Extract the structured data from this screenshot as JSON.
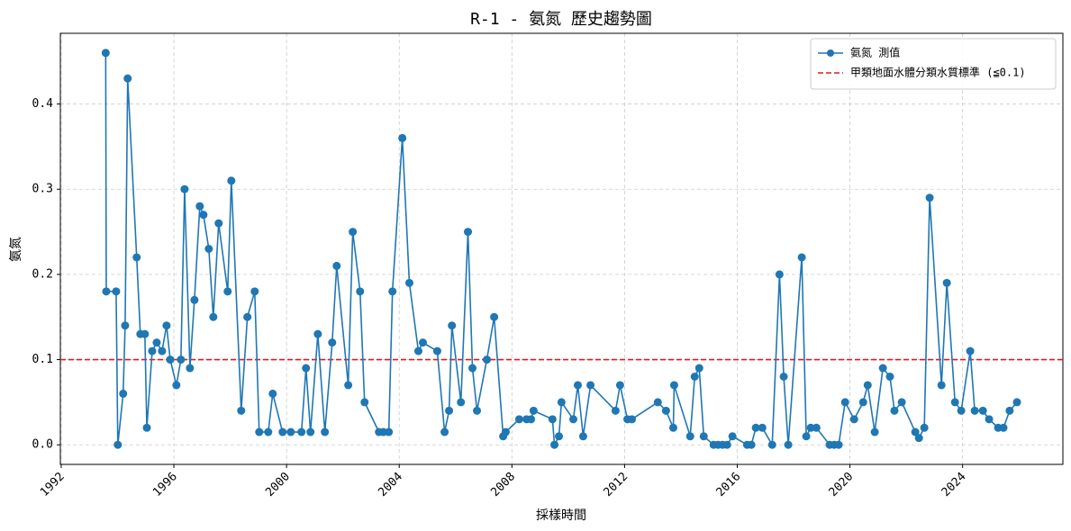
{
  "chart_data": {
    "type": "line",
    "title": "R-1 - 氨氮 歷史趨勢圖",
    "xlabel": "採樣時間",
    "ylabel": "氨氮",
    "x": [
      1993.58,
      1993.6,
      1993.95,
      1994.01,
      1994.2,
      1994.27,
      1994.36,
      1994.68,
      1994.81,
      1994.97,
      1995.04,
      1995.23,
      1995.39,
      1995.58,
      1995.74,
      1995.87,
      1996.09,
      1996.25,
      1996.38,
      1996.57,
      1996.73,
      1996.92,
      1997.05,
      1997.24,
      1997.4,
      1997.59,
      1997.91,
      1998.04,
      1998.39,
      1998.61,
      1998.87,
      1999.03,
      1999.35,
      1999.51,
      1999.86,
      2000.15,
      2000.53,
      2000.69,
      2000.85,
      2001.11,
      2001.36,
      2001.62,
      2001.78,
      2002.19,
      2002.35,
      2002.61,
      2002.77,
      2003.28,
      2003.44,
      2003.63,
      2003.76,
      2004.11,
      2004.36,
      2004.68,
      2004.84,
      2005.35,
      2005.61,
      2005.77,
      2005.87,
      2006.19,
      2006.44,
      2006.6,
      2006.76,
      2007.11,
      2007.37,
      2007.69,
      2007.78,
      2008.26,
      2008.52,
      2008.68,
      2008.77,
      2009.44,
      2009.51,
      2009.67,
      2009.76,
      2010.18,
      2010.34,
      2010.53,
      2010.79,
      2011.68,
      2011.84,
      2012.1,
      2012.26,
      2013.18,
      2013.47,
      2013.73,
      2013.76,
      2014.33,
      2014.49,
      2014.65,
      2014.81,
      2015.16,
      2015.32,
      2015.48,
      2015.64,
      2015.83,
      2016.35,
      2016.5,
      2016.66,
      2016.89,
      2017.24,
      2017.5,
      2017.65,
      2017.81,
      2018.29,
      2018.45,
      2018.61,
      2018.81,
      2019.28,
      2019.44,
      2019.6,
      2019.83,
      2020.15,
      2020.47,
      2020.63,
      2020.88,
      2021.17,
      2021.42,
      2021.58,
      2021.84,
      2022.32,
      2022.45,
      2022.64,
      2022.83,
      2023.25,
      2023.44,
      2023.73,
      2023.95,
      2024.27,
      2024.43,
      2024.72,
      2024.94,
      2025.26,
      2025.45,
      2025.67,
      2025.93
    ],
    "series": [
      {
        "name": "氨氮 測值",
        "color": "#1f77b4",
        "values": [
          0.46,
          0.18,
          0.18,
          0,
          0.06,
          0.14,
          0.43,
          0.22,
          0.13,
          0.13,
          0.02,
          0.11,
          0.12,
          0.11,
          0.14,
          0.1,
          0.07,
          0.1,
          0.3,
          0.09,
          0.17,
          0.28,
          0.27,
          0.23,
          0.15,
          0.26,
          0.18,
          0.31,
          0.04,
          0.15,
          0.18,
          0.015,
          0.015,
          0.06,
          0.015,
          0.015,
          0.015,
          0.09,
          0.015,
          0.13,
          0.015,
          0.12,
          0.21,
          0.07,
          0.25,
          0.18,
          0.05,
          0.015,
          0.015,
          0.015,
          0.18,
          0.36,
          0.19,
          0.11,
          0.12,
          0.11,
          0.015,
          0.04,
          0.14,
          0.05,
          0.25,
          0.09,
          0.04,
          0.1,
          0.15,
          0.01,
          0.015,
          0.03,
          0.03,
          0.03,
          0.04,
          0.03,
          0,
          0.01,
          0.05,
          0.03,
          0.07,
          0.01,
          0.07,
          0.04,
          0.07,
          0.03,
          0.03,
          0.05,
          0.04,
          0.02,
          0.07,
          0.01,
          0.08,
          0.09,
          0.01,
          0,
          0,
          0,
          0,
          0.01,
          0,
          0,
          0.02,
          0.02,
          0,
          0.2,
          0.08,
          0,
          0.22,
          0.01,
          0.02,
          0.02,
          0,
          0,
          0,
          0.05,
          0.03,
          0.05,
          0.07,
          0.015,
          0.09,
          0.08,
          0.04,
          0.05,
          0.015,
          0.008,
          0.02,
          0.29,
          0.07,
          0.19,
          0.05,
          0.04,
          0.11,
          0.04,
          0.04,
          0.03,
          0.02,
          0.02,
          0.04,
          0.05
        ]
      }
    ],
    "reference_line": {
      "name": "甲類地面水體分類水質標準 (≦0.1)",
      "value": 0.1,
      "color": "#e31a1c"
    },
    "xlim": [
      1991.97,
      2027.56
    ],
    "xticks": [
      1992,
      1996,
      2000,
      2004,
      2008,
      2012,
      2016,
      2020,
      2024
    ],
    "ylim": [
      -0.023,
      0.483
    ],
    "yticks": [
      {
        "value": 0,
        "label": "0.0"
      },
      0.1,
      0.2,
      0.3,
      0.4
    ],
    "grid": true,
    "legend": "upper right"
  }
}
